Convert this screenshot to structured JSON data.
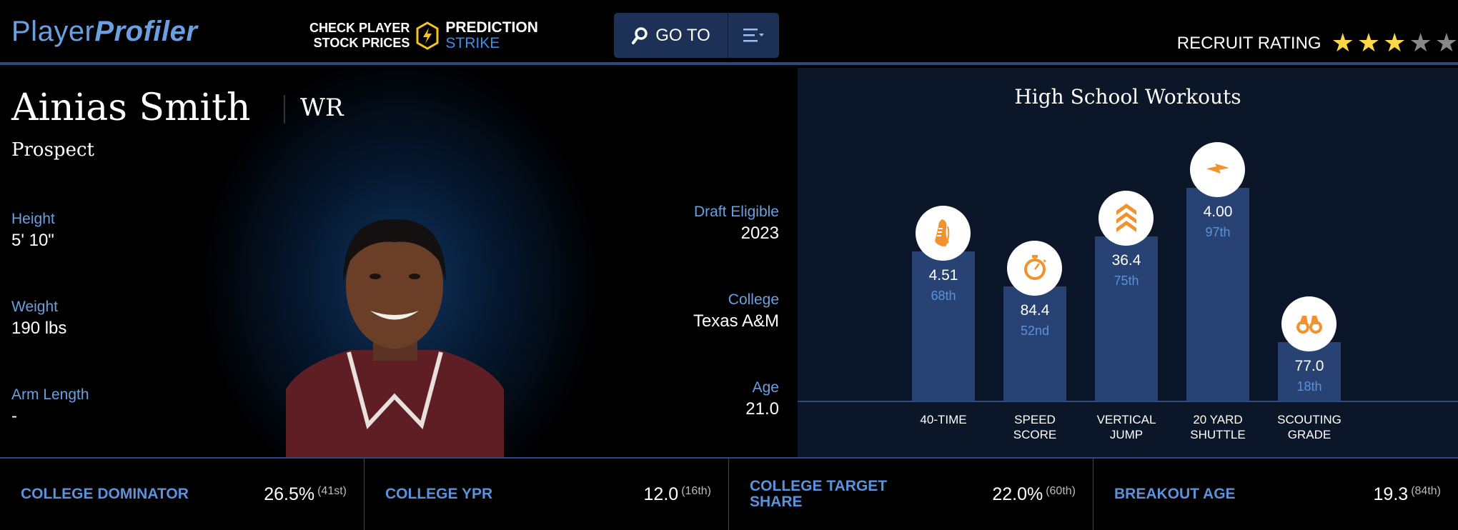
{
  "header": {
    "logo": {
      "part1": "Player",
      "part2": "Profiler"
    },
    "promo": {
      "line1": "CHECK PLAYER",
      "line2": "STOCK PRICES",
      "brand1": "PREDICTION",
      "brand2": "STRIKE"
    },
    "goto_label": "GO TO",
    "recruit_rating": {
      "label": "RECRUIT RATING",
      "stars": 3,
      "max": 5
    }
  },
  "player": {
    "name": "Ainias Smith",
    "position": "WR",
    "status": "Prospect",
    "left_stats": [
      {
        "label": "Height",
        "value": "5' 10\""
      },
      {
        "label": "Weight",
        "value": "190 lbs"
      },
      {
        "label": "Arm Length",
        "value": "-"
      }
    ],
    "right_stats": [
      {
        "label": "Draft Eligible",
        "value": "2023"
      },
      {
        "label": "College",
        "value": "Texas A&M"
      },
      {
        "label": "Age",
        "value": "21.0"
      }
    ]
  },
  "chart_data": {
    "type": "bar",
    "title": "High School Workouts",
    "categories": [
      "40-TIME",
      "SPEED SCORE",
      "VERTICAL JUMP",
      "20 YARD SHUTTLE",
      "SCOUTING GRADE"
    ],
    "category_lines": [
      [
        "40-TIME"
      ],
      [
        "SPEED",
        "SCORE"
      ],
      [
        "VERTICAL",
        "JUMP"
      ],
      [
        "20 YARD",
        "SHUTTLE"
      ],
      [
        "SCOUTING",
        "GRADE"
      ]
    ],
    "values": [
      "4.51",
      "84.4",
      "36.4",
      "4.00",
      "77.0"
    ],
    "percentiles": [
      68,
      52,
      75,
      97,
      18
    ],
    "percentile_labels": [
      "68th",
      "52nd",
      "75th",
      "97th",
      "18th"
    ],
    "icons": [
      "shoe-icon",
      "stopwatch-icon",
      "chevrons-up-icon",
      "lightning-icon",
      "binoculars-icon"
    ],
    "ylim": [
      0,
      100
    ]
  },
  "bottom_stats": [
    {
      "label": "COLLEGE DOMINATOR",
      "value": "26.5%",
      "rank": "(41st)"
    },
    {
      "label": "COLLEGE YPR",
      "value": "12.0",
      "rank": "(16th)"
    },
    {
      "label": "COLLEGE TARGET SHARE",
      "value": "22.0%",
      "rank": "(60th)"
    },
    {
      "label": "BREAKOUT AGE",
      "value": "19.3",
      "rank": "(84th)"
    }
  ],
  "colors": {
    "accent": "#5a92dc",
    "bar": "#274273",
    "icon": "#f0922e",
    "star_on": "#fdd746",
    "star_off": "#888888",
    "panel": "#0b1629"
  }
}
